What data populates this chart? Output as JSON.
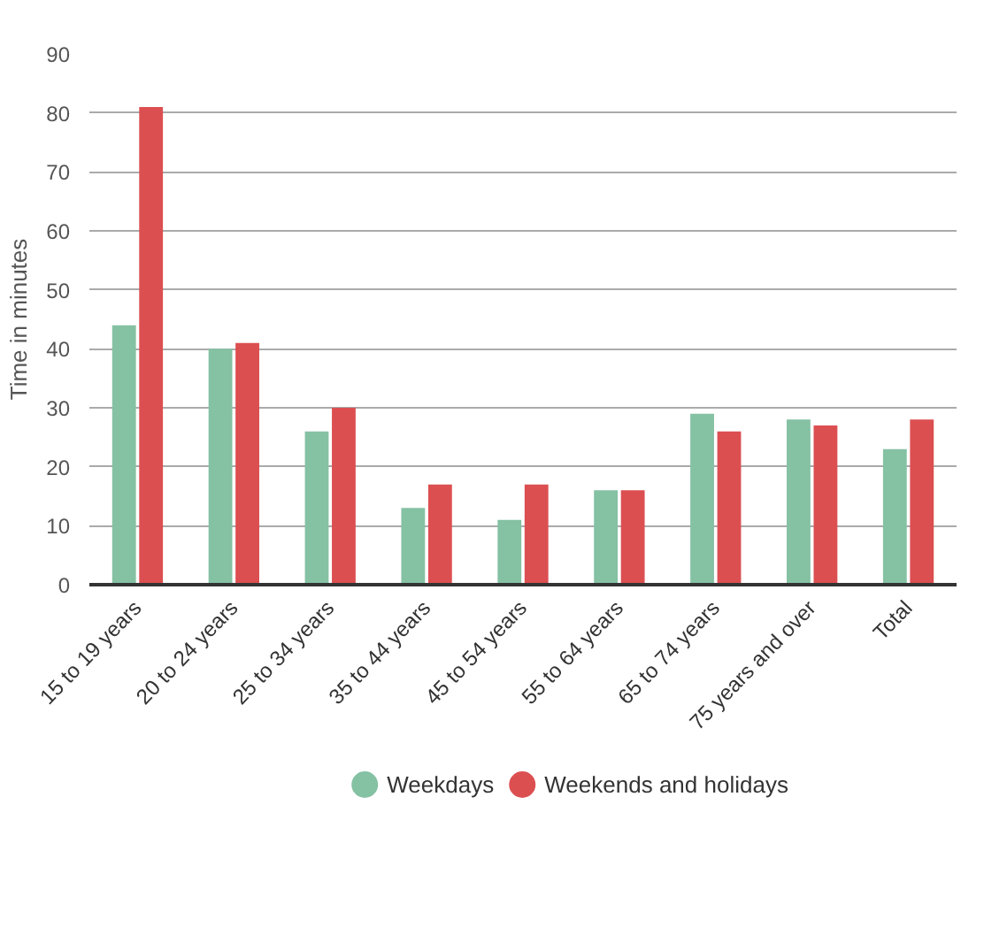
{
  "chart_data": {
    "type": "bar",
    "ylabel": "Time in minutes",
    "categories": [
      "15 to 19 years",
      "20 to 24 years",
      "25 to 34 years",
      "35 to 44 years",
      "45 to 54 years",
      "55 to 64 years",
      "65 to 74 years",
      "75 years and over",
      "Total"
    ],
    "series": [
      {
        "name": "Weekdays",
        "color": "#85c1a3",
        "values": [
          44,
          40,
          26,
          13,
          11,
          16,
          29,
          28,
          23
        ]
      },
      {
        "name": "Weekends and holidays",
        "color": "#dc4f51",
        "values": [
          81,
          41,
          30,
          17,
          17,
          16,
          26,
          27,
          28
        ]
      }
    ],
    "ylim": [
      0,
      90
    ],
    "yticks": [
      0,
      10,
      20,
      30,
      40,
      50,
      60,
      70,
      80,
      90
    ],
    "grid": "y",
    "legend": "bottom"
  }
}
